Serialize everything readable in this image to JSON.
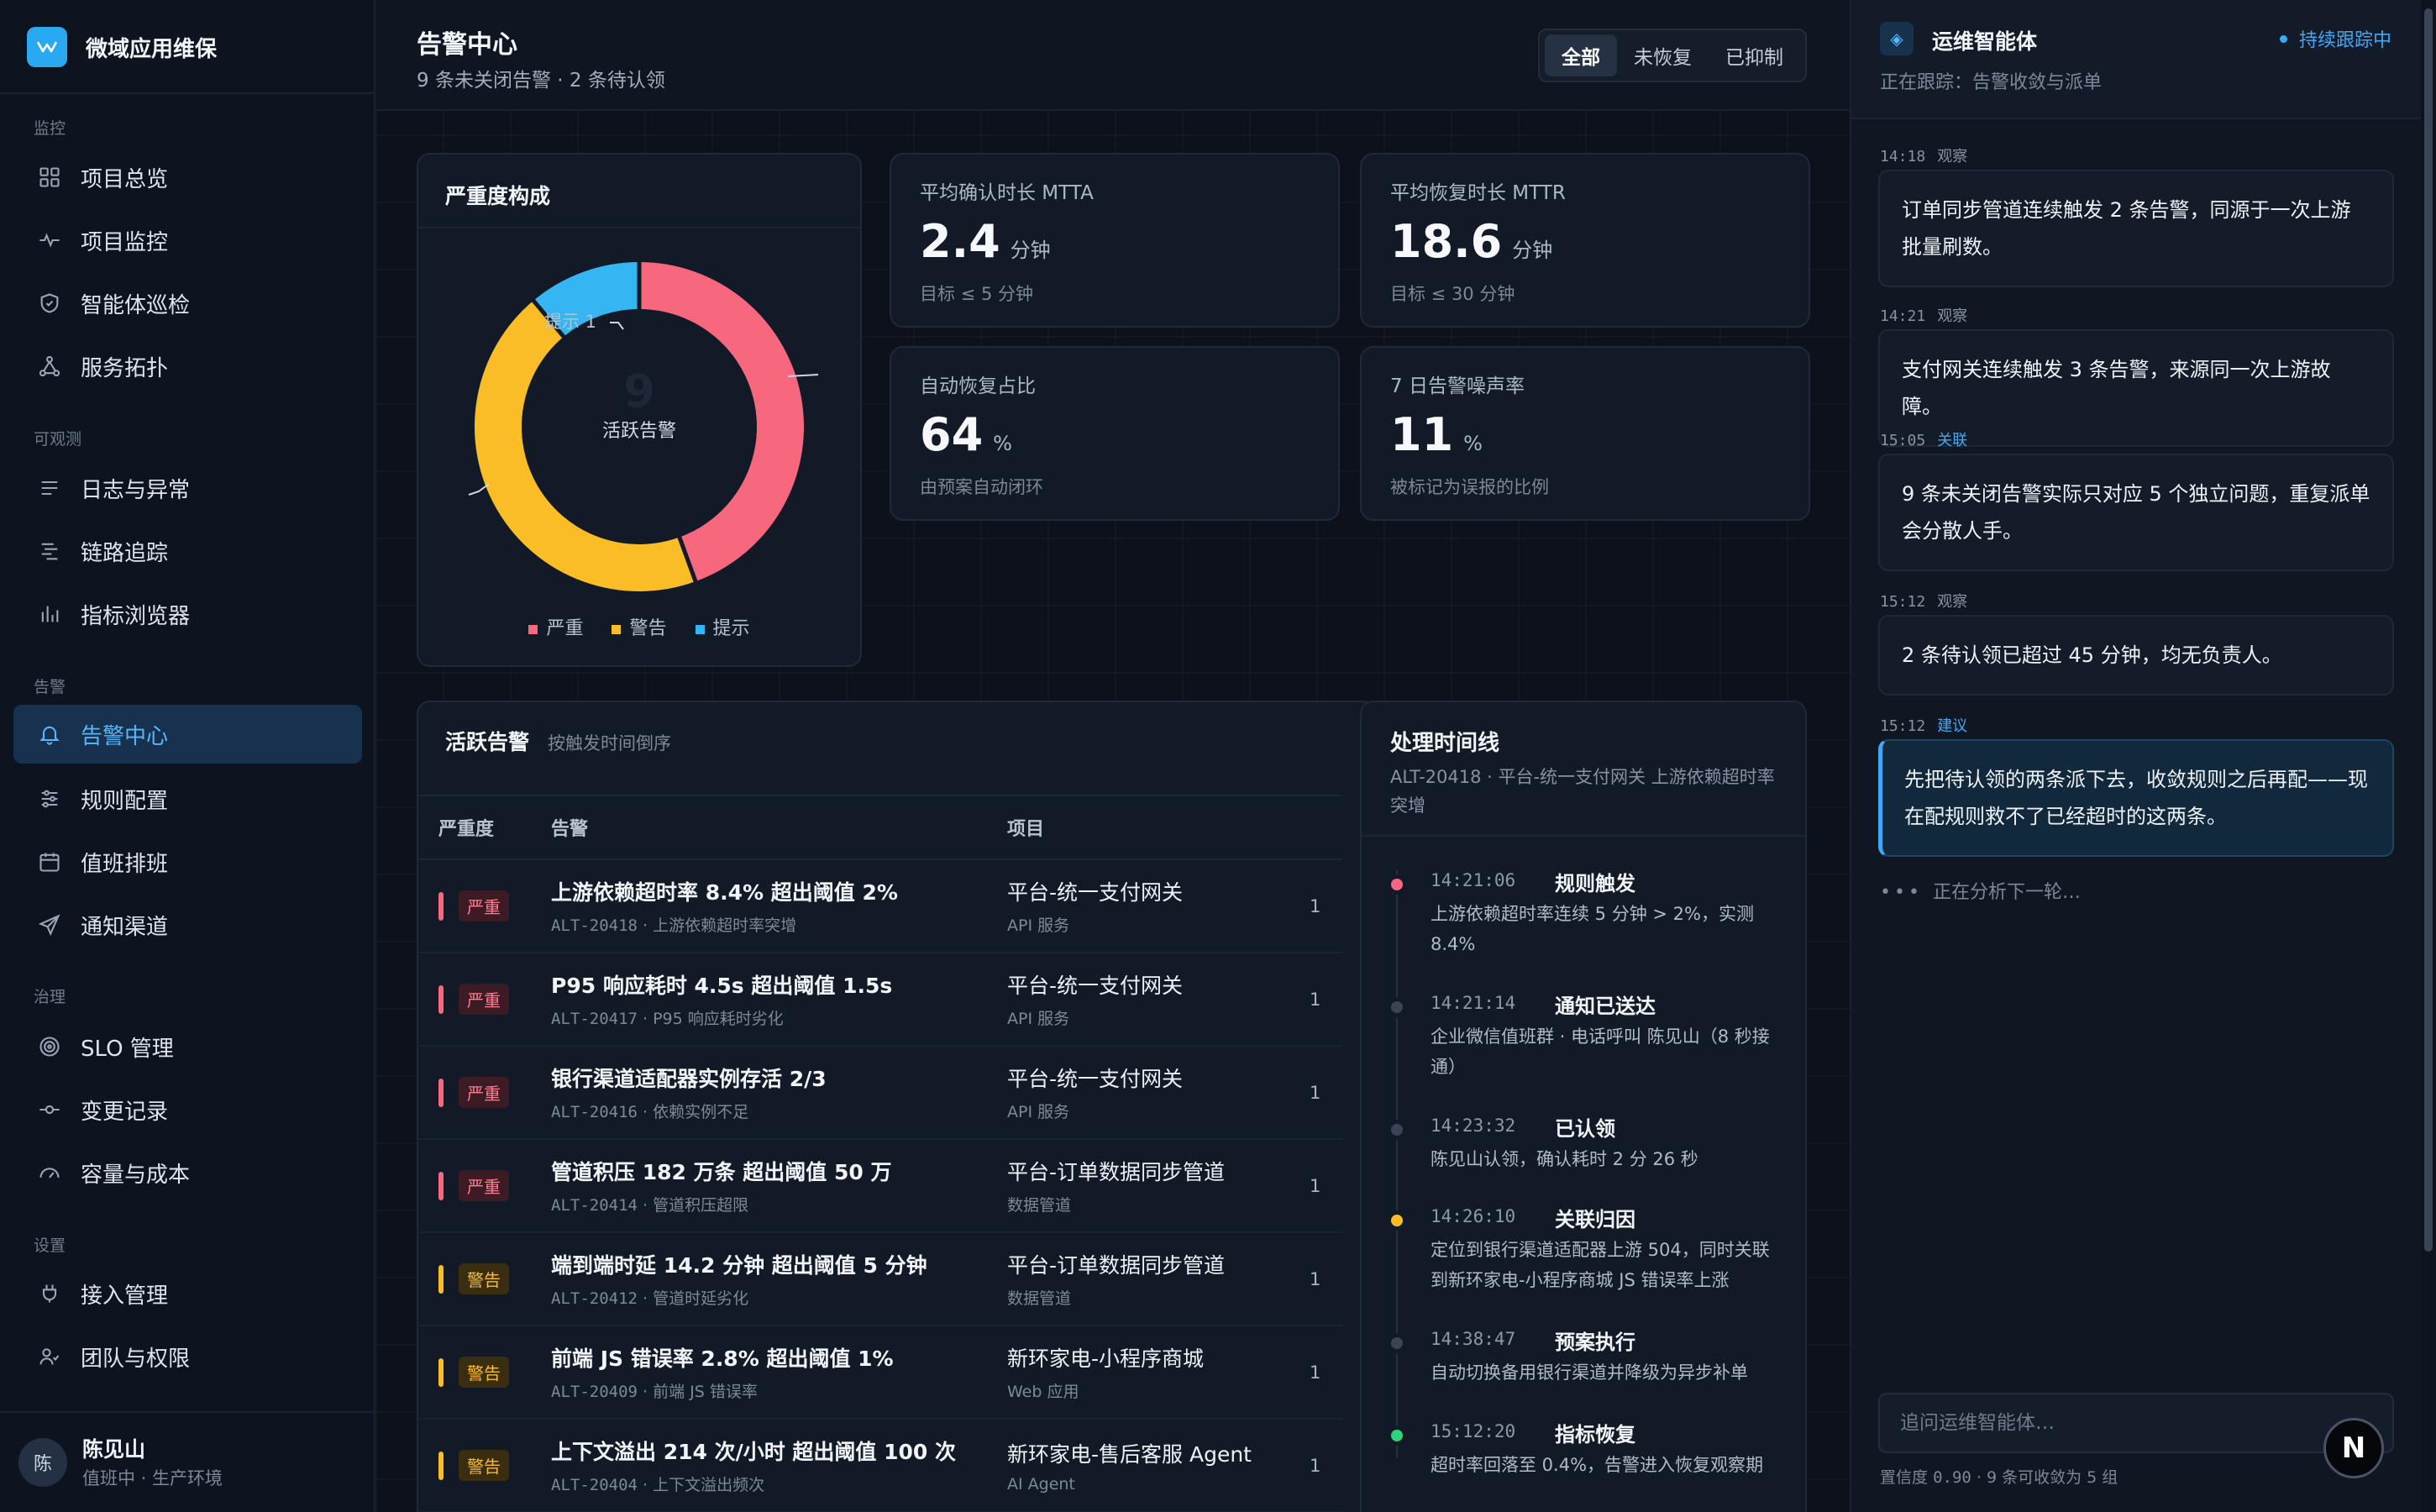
{
  "app": {
    "name": "微域应用维保"
  },
  "sidebar": {
    "sections": [
      {
        "title": "监控",
        "items": [
          "项目总览",
          "项目监控",
          "智能体巡检",
          "服务拓扑"
        ]
      },
      {
        "title": "可观测",
        "items": [
          "日志与异常",
          "链路追踪",
          "指标浏览器"
        ]
      },
      {
        "title": "告警",
        "items": [
          "告警中心",
          "规则配置",
          "值班排班",
          "通知渠道"
        ]
      },
      {
        "title": "治理",
        "items": [
          "SLO 管理",
          "变更记录",
          "容量与成本"
        ]
      },
      {
        "title": "设置",
        "items": [
          "接入管理",
          "团队与权限"
        ]
      }
    ],
    "active_item": "告警中心",
    "user": {
      "avatar": "陈",
      "name": "陈见山",
      "status": "值班中 · 生产环境"
    }
  },
  "header": {
    "title": "告警中心",
    "subtitle": "9 条未关闭告警 · 2 条待认领",
    "filters": [
      "全部",
      "未恢复",
      "已抑制"
    ],
    "active_filter": "全部"
  },
  "severity_card": {
    "title": "严重度构成",
    "center_value": "9",
    "center_label": "活跃告警",
    "slice_label": "提示 1",
    "legend": [
      "严重",
      "警告",
      "提示"
    ]
  },
  "chart_data": {
    "type": "pie",
    "title": "严重度构成",
    "categories": [
      "严重",
      "警告",
      "提示"
    ],
    "values": [
      4,
      4,
      1
    ],
    "colors": [
      "#f7687f",
      "#fbbd26",
      "#35b6f2"
    ],
    "donut": true
  },
  "kpis": [
    {
      "label": "平均确认时长 MTTA",
      "value": "2.4",
      "unit": "分钟",
      "note": "目标 ≤ 5 分钟"
    },
    {
      "label": "平均恢复时长 MTTR",
      "value": "18.6",
      "unit": "分钟",
      "note": "目标 ≤ 30 分钟"
    },
    {
      "label": "自动恢复占比",
      "value": "64",
      "unit": "%",
      "note": "由预案自动闭环"
    },
    {
      "label": "7 日告警噪声率",
      "value": "11",
      "unit": "%",
      "note": "被标记为误报的比例"
    }
  ],
  "alerts_table": {
    "title": "活跃告警",
    "subtitle": "按触发时间倒序",
    "columns": [
      "严重度",
      "告警",
      "项目"
    ],
    "rows": [
      {
        "severity": "严重",
        "title": "上游依赖超时率 8.4% 超出阈值 2%",
        "id": "ALT-20418",
        "desc": "上游依赖超时率突增",
        "project": "平台-统一支付网关",
        "project_type": "API 服务",
        "extra": "1"
      },
      {
        "severity": "严重",
        "title": "P95 响应耗时 4.5s 超出阈值 1.5s",
        "id": "ALT-20417",
        "desc": "P95 响应耗时劣化",
        "project": "平台-统一支付网关",
        "project_type": "API 服务",
        "extra": "1"
      },
      {
        "severity": "严重",
        "title": "银行渠道适配器实例存活 2/3",
        "id": "ALT-20416",
        "desc": "依赖实例不足",
        "project": "平台-统一支付网关",
        "project_type": "API 服务",
        "extra": "1"
      },
      {
        "severity": "严重",
        "title": "管道积压 182 万条 超出阈值 50 万",
        "id": "ALT-20414",
        "desc": "管道积压超限",
        "project": "平台-订单数据同步管道",
        "project_type": "数据管道",
        "extra": "1"
      },
      {
        "severity": "警告",
        "title": "端到端时延 14.2 分钟 超出阈值 5 分钟",
        "id": "ALT-20412",
        "desc": "管道时延劣化",
        "project": "平台-订单数据同步管道",
        "project_type": "数据管道",
        "extra": "1"
      },
      {
        "severity": "警告",
        "title": "前端 JS 错误率 2.8% 超出阈值 1%",
        "id": "ALT-20409",
        "desc": "前端 JS 错误率",
        "project": "新环家电-小程序商城",
        "project_type": "Web 应用",
        "extra": "1"
      },
      {
        "severity": "警告",
        "title": "上下文溢出 214 次/小时 超出阈值 100 次",
        "id": "ALT-20404",
        "desc": "上下文溢出频次",
        "project": "新环家电-售后客服 Agent",
        "project_type": "AI Agent",
        "extra": "1"
      }
    ]
  },
  "timeline": {
    "title": "处理时间线",
    "subtitle": "ALT-20418 · 平台-统一支付网关 上游依赖超时率突增",
    "events": [
      {
        "time": "14:21:06",
        "event": "规则触发",
        "desc": "上游依赖超时率连续 5 分钟 > 2%，实测 8.4%",
        "color": "#f7687f"
      },
      {
        "time": "14:21:14",
        "event": "通知已送达",
        "desc": "企业微信值班群 · 电话呼叫 陈见山（8 秒接通）",
        "color": "#3a4456"
      },
      {
        "time": "14:23:32",
        "event": "已认领",
        "desc": "陈见山认领，确认耗时 2 分 26 秒",
        "color": "#3a4456"
      },
      {
        "time": "14:26:10",
        "event": "关联归因",
        "desc": "定位到银行渠道适配器上游 504，同时关联到新环家电-小程序商城 JS 错误率上涨",
        "color": "#fbbd26"
      },
      {
        "time": "14:38:47",
        "event": "预案执行",
        "desc": "自动切换备用银行渠道并降级为异步补单",
        "color": "#3a4456"
      },
      {
        "time": "15:12:20",
        "event": "指标恢复",
        "desc": "超时率回落至 0.4%，告警进入恢复观察期",
        "color": "#2ed47a"
      }
    ]
  },
  "agent": {
    "title": "运维智能体",
    "tracking_badge": "持续跟踪中",
    "tracking_sub": "正在跟踪：告警收敛与派单",
    "messages": [
      {
        "time": "14:18",
        "kind": "观察",
        "text": "订单同步管道连续触发 2 条告警，同源于一次上游批量刷数。"
      },
      {
        "time": "14:21",
        "kind": "观察",
        "text": "支付网关连续触发 3 条告警，来源同一次上游故障。"
      },
      {
        "time": "15:05",
        "kind": "关联",
        "text": "9 条未关闭告警实际只对应 5 个独立问题，重复派单会分散人手。"
      },
      {
        "time": "15:12",
        "kind": "观察",
        "text": "2 条待认领已超过 45 分钟，均无负责人。"
      },
      {
        "time": "15:12",
        "kind": "建议",
        "text": "先把待认领的两条派下去，收敛规则之后再配——现在配规则救不了已经超时的这两条。"
      }
    ],
    "thinking": "正在分析下一轮…",
    "input_placeholder": "追问运维智能体…",
    "footer": {
      "label1": "置信度",
      "conf": "0.90",
      "label2": "· 9 条可收敛为 5 组"
    }
  },
  "badge": "N"
}
